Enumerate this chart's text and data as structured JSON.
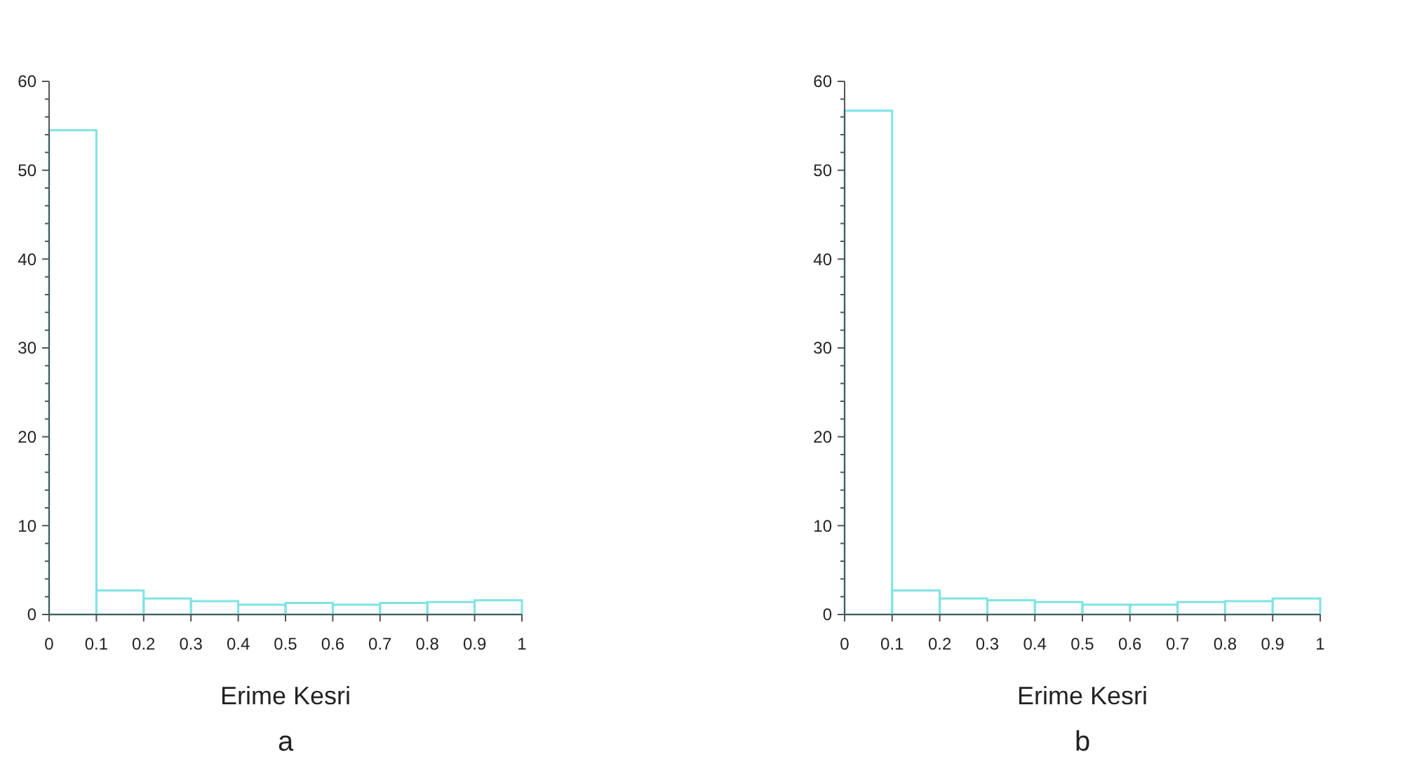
{
  "chart_data": [
    {
      "type": "histogram",
      "xlabel": "Erime Kesri",
      "annotations": [
        "a"
      ],
      "bins": [
        0,
        0.1,
        0.2,
        0.3,
        0.4,
        0.5,
        0.6,
        0.7,
        0.8,
        0.9,
        1
      ],
      "values": [
        54.5,
        2.7,
        1.8,
        1.5,
        1.1,
        1.3,
        1.1,
        1.3,
        1.4,
        1.6
      ],
      "color": "#7fe3e3",
      "xlim": [
        0,
        1
      ],
      "xticks": [
        0,
        0.1,
        0.2,
        0.3,
        0.4,
        0.5,
        0.6,
        0.7,
        0.8,
        0.9,
        1
      ],
      "ylim": [
        0,
        60
      ],
      "yticks": [
        0,
        {
          "value": 2,
          "label": null
        },
        {
          "value": 4,
          "label": null
        },
        {
          "value": 6,
          "label": null
        },
        {
          "value": 8,
          "label": null
        },
        10,
        {
          "value": 12,
          "label": null
        },
        {
          "value": 14,
          "label": null
        },
        {
          "value": 16,
          "label": null
        },
        {
          "value": 18,
          "label": null
        },
        20,
        {
          "value": 22,
          "label": null
        },
        {
          "value": 24,
          "label": null
        },
        {
          "value": 26,
          "label": null
        },
        {
          "value": 28,
          "label": null
        },
        30,
        {
          "value": 32,
          "label": null
        },
        {
          "value": 34,
          "label": null
        },
        {
          "value": 36,
          "label": null
        },
        {
          "value": 38,
          "label": null
        },
        40,
        {
          "value": 42,
          "label": null
        },
        {
          "value": 44,
          "label": null
        },
        {
          "value": 46,
          "label": null
        },
        {
          "value": 48,
          "label": null
        },
        50,
        {
          "value": 52,
          "label": null
        },
        {
          "value": 54,
          "label": null
        },
        {
          "value": 56,
          "label": null
        },
        {
          "value": 58,
          "label": null
        },
        60
      ]
    },
    {
      "type": "histogram",
      "xlabel": "Erime Kesri",
      "annotations": [
        "b"
      ],
      "bins": [
        0,
        0.1,
        0.2,
        0.3,
        0.4,
        0.5,
        0.6,
        0.7,
        0.8,
        0.9,
        1
      ],
      "values": [
        56.7,
        2.7,
        1.8,
        1.6,
        1.4,
        1.1,
        1.1,
        1.4,
        1.5,
        1.8
      ],
      "color": "#7fe3e3",
      "xlim": [
        0,
        1
      ],
      "xticks": [
        0,
        0.1,
        0.2,
        0.3,
        0.4,
        0.5,
        0.6,
        0.7,
        0.8,
        0.9,
        1
      ],
      "ylim": [
        0,
        60
      ],
      "yticks": [
        0,
        {
          "value": 2,
          "label": null
        },
        {
          "value": 4,
          "label": null
        },
        {
          "value": 6,
          "label": null
        },
        {
          "value": 8,
          "label": null
        },
        10,
        {
          "value": 12,
          "label": null
        },
        {
          "value": 14,
          "label": null
        },
        {
          "value": 16,
          "label": null
        },
        {
          "value": 18,
          "label": null
        },
        20,
        {
          "value": 22,
          "label": null
        },
        {
          "value": 24,
          "label": null
        },
        {
          "value": 26,
          "label": null
        },
        {
          "value": 28,
          "label": null
        },
        30,
        {
          "value": 32,
          "label": null
        },
        {
          "value": 34,
          "label": null
        },
        {
          "value": 36,
          "label": null
        },
        {
          "value": 38,
          "label": null
        },
        40,
        {
          "value": 42,
          "label": null
        },
        {
          "value": 44,
          "label": null
        },
        {
          "value": 46,
          "label": null
        },
        {
          "value": 48,
          "label": null
        },
        50,
        {
          "value": 52,
          "label": null
        },
        {
          "value": 54,
          "label": null
        },
        {
          "value": 56,
          "label": null
        },
        {
          "value": 58,
          "label": null
        },
        60
      ]
    }
  ]
}
